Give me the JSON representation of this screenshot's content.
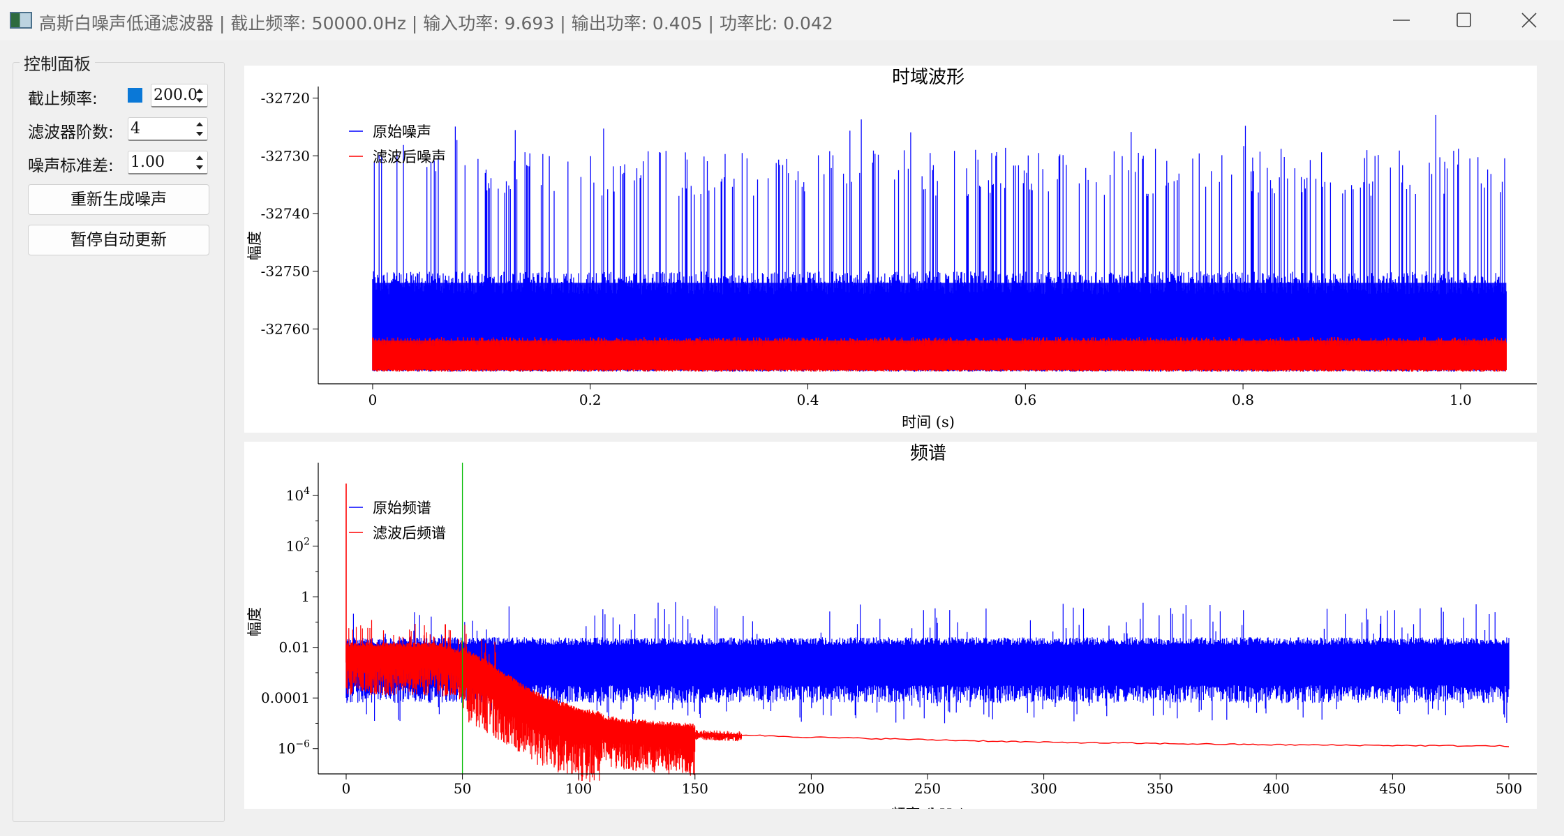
{
  "window": {
    "title": "高斯白噪声低通滤波器 | 截止频率: 50000.0Hz | 输入功率: 9.693 | 输出功率: 0.405 | 功率比: 0.042",
    "icon": "chart-app-icon",
    "buttons": [
      "minimize-icon",
      "maximize-icon",
      "close-icon"
    ]
  },
  "panel": {
    "title": "控制面板",
    "cutoff_label": "截止频率:",
    "cutoff_value": "200.0",
    "order_label": "滤波器阶数:",
    "order_value": "4",
    "std_label": "噪声标准差:",
    "std_value": "1.00",
    "regen_button": "重新生成噪声",
    "pause_button": "暂停自动更新",
    "accent_color": "#0a78d7"
  },
  "chart_data": [
    {
      "type": "line",
      "title": "时域波形",
      "xlabel": "时间 (s)",
      "ylabel": "幅度",
      "xlim": [
        -0.05,
        1.07
      ],
      "ylim": [
        -32769.5,
        -32718
      ],
      "xticks": [
        0,
        0.2,
        0.4,
        0.6,
        0.8,
        1.0
      ],
      "xtick_labels": [
        "0",
        "0.2",
        "0.4",
        "0.6",
        "0.8",
        "1.0"
      ],
      "yticks": [
        -32720,
        -32730,
        -32740,
        -32750,
        -32760
      ],
      "ytick_labels": [
        "-32720",
        "-32730",
        "-32740",
        "-32750",
        "-32760"
      ],
      "legend_position": "top-left",
      "grid": false,
      "series": [
        {
          "name": "原始噪声",
          "color": "#0000ff",
          "x_range": [
            0,
            1.042
          ],
          "band": [
            -32767,
            -32752
          ],
          "peaks": [
            -32737,
            -32722
          ]
        },
        {
          "name": "滤波后噪声",
          "color": "#ff0000",
          "x_range": [
            0,
            1.042
          ],
          "band": [
            -32767,
            -32762
          ],
          "peaks": [
            -32763,
            -32761.5
          ]
        }
      ]
    },
    {
      "type": "line",
      "title": "频谱",
      "xlabel": "频率 (kHz)",
      "ylabel": "幅度",
      "y_scale": "log",
      "xlim": [
        -12,
        512
      ],
      "ylim_log10": [
        -7,
        5.3
      ],
      "xticks": [
        0,
        50,
        100,
        150,
        200,
        250,
        300,
        350,
        400,
        450,
        500
      ],
      "xtick_labels": [
        "0",
        "50",
        "100",
        "150",
        "200",
        "250",
        "300",
        "350",
        "400",
        "450",
        "500"
      ],
      "yticks_log10": [
        4,
        2,
        0,
        -2,
        -4,
        -6
      ],
      "ytick_labels": [
        "10^4",
        "10^2",
        "1",
        "0.01",
        "0.0001",
        "10^-6"
      ],
      "legend_position": "top-left",
      "grid": false,
      "cutoff_marker": {
        "x": 50,
        "color": "#00bb00"
      },
      "series": [
        {
          "name": "原始频谱",
          "color": "#0000ff",
          "x_range": [
            0,
            500
          ],
          "typical_log10": [
            -3.5,
            -1.7
          ]
        },
        {
          "name": "滤波后频谱",
          "color": "#ff0000",
          "dc_peak": 30000,
          "envelope": [
            [
              0,
              -2.2
            ],
            [
              40,
              -2.2
            ],
            [
              50,
              -2.5
            ],
            [
              60,
              -3.0
            ],
            [
              80,
              -4.2
            ],
            [
              100,
              -4.9
            ],
            [
              120,
              -5.2
            ],
            [
              150,
              -5.4
            ],
            [
              200,
              -5.55
            ],
            [
              300,
              -5.75
            ],
            [
              400,
              -5.85
            ],
            [
              500,
              -5.9
            ]
          ]
        }
      ]
    }
  ]
}
